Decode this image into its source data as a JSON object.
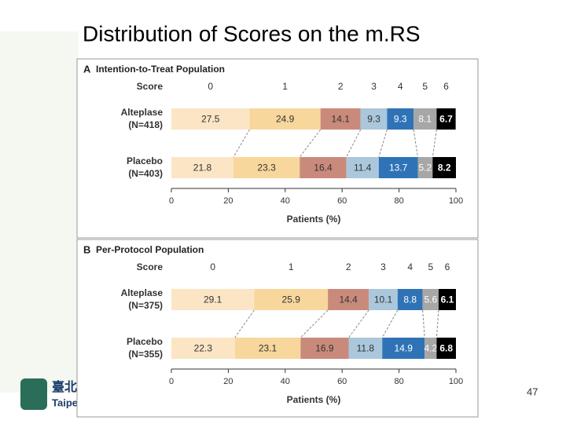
{
  "title": "Distribution of Scores on the m.RS",
  "page_number": "47",
  "logo_text": [
    "臺北",
    "Taipei"
  ],
  "chart_data": [
    {
      "type": "bar",
      "orientation": "horizontal",
      "stacked": true,
      "panel": "A",
      "title": "Intention-to-Treat Population",
      "legend_title": "Score",
      "categories": [
        "Alteplase",
        "Placebo"
      ],
      "group_sizes": [
        "(N=418)",
        "(N=403)"
      ],
      "xlabel": "Patients (%)",
      "xlim": [
        0,
        100
      ],
      "xticks": [
        0,
        20,
        40,
        60,
        80,
        100
      ],
      "series": [
        {
          "name": "0",
          "color": "#fbe5c4",
          "values": [
            27.5,
            21.8
          ]
        },
        {
          "name": "1",
          "color": "#f8d79c",
          "values": [
            24.9,
            23.3
          ]
        },
        {
          "name": "2",
          "color": "#c98a7c",
          "values": [
            14.1,
            16.4
          ]
        },
        {
          "name": "3",
          "color": "#aac7dc",
          "values": [
            9.3,
            11.4
          ]
        },
        {
          "name": "4",
          "color": "#2f73b6",
          "values": [
            9.3,
            13.7
          ]
        },
        {
          "name": "5",
          "color": "#a7a7a7",
          "values": [
            8.1,
            5.2
          ]
        },
        {
          "name": "6",
          "color": "#000000",
          "values": [
            6.7,
            8.2
          ]
        }
      ]
    },
    {
      "type": "bar",
      "orientation": "horizontal",
      "stacked": true,
      "panel": "B",
      "title": "Per-Protocol Population",
      "legend_title": "Score",
      "categories": [
        "Alteplase",
        "Placebo"
      ],
      "group_sizes": [
        "(N=375)",
        "(N=355)"
      ],
      "xlabel": "Patients (%)",
      "xlim": [
        0,
        100
      ],
      "xticks": [
        0,
        20,
        40,
        60,
        80,
        100
      ],
      "series": [
        {
          "name": "0",
          "color": "#fbe5c4",
          "values": [
            29.1,
            22.3
          ]
        },
        {
          "name": "1",
          "color": "#f8d79c",
          "values": [
            25.9,
            23.1
          ]
        },
        {
          "name": "2",
          "color": "#c98a7c",
          "values": [
            14.4,
            16.9
          ]
        },
        {
          "name": "3",
          "color": "#aac7dc",
          "values": [
            10.1,
            11.8
          ]
        },
        {
          "name": "4",
          "color": "#2f73b6",
          "values": [
            8.8,
            14.9
          ]
        },
        {
          "name": "5",
          "color": "#a7a7a7",
          "values": [
            5.6,
            4.2
          ]
        },
        {
          "name": "6",
          "color": "#000000",
          "values": [
            6.1,
            6.8
          ]
        }
      ]
    }
  ]
}
